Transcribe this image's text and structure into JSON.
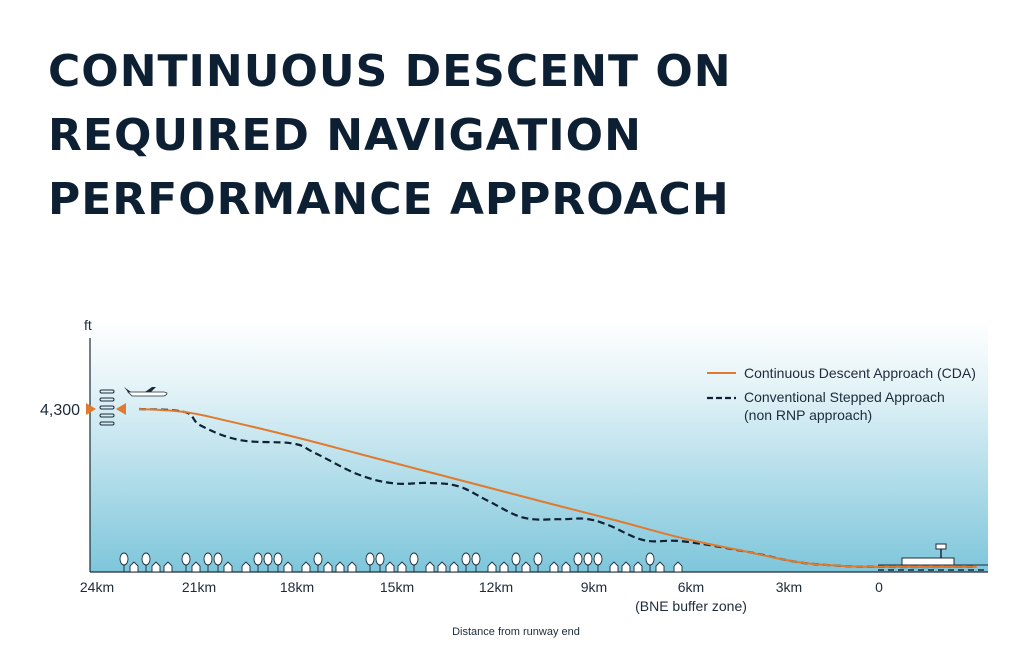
{
  "title_lines": [
    "CONTINUOUS DESCENT ON",
    "REQUIRED NAVIGATION",
    "PERFORMANCE APPROACH"
  ],
  "chart_data": {
    "type": "line",
    "title": "CONTINUOUS DESCENT ON REQUIRED NAVIGATION PERFORMANCE APPROACH",
    "ylabel": "ft",
    "xlabel": "Distance from runway end",
    "x_tick_labels": [
      "24km",
      "21km",
      "18km",
      "15km",
      "12km",
      "9km",
      "6km",
      "3km",
      "0"
    ],
    "x_tick_sublabel": "(BNE buffer zone)",
    "y_tick_labels": [
      "4,300"
    ],
    "x_reversed": true,
    "xlim": [
      24,
      0
    ],
    "ylim": [
      0,
      4300
    ],
    "grid": false,
    "legend_position": "top-right",
    "legend": [
      {
        "name": "Continuous Descent Approach (CDA)",
        "style": "solid",
        "color": "#e07a2e"
      },
      {
        "name": "Conventional Stepped Approach",
        "subname": "(non RNP approach)",
        "style": "dashed",
        "color": "#0f2233"
      }
    ],
    "series": [
      {
        "name": "Continuous Descent Approach (CDA)",
        "color": "#e07a2e",
        "x": [
          22.7,
          21.3,
          20.0,
          18.0,
          16.0,
          14.0,
          12.0,
          10.0,
          8.0,
          6.0,
          4.0,
          2.5,
          1.2,
          0.0,
          -3.0
        ],
        "y": [
          4300,
          4220,
          3980,
          3560,
          3100,
          2640,
          2180,
          1720,
          1270,
          800,
          430,
          160,
          60,
          30,
          30
        ]
      },
      {
        "name": "Conventional Stepped Approach",
        "color": "#0f2233",
        "x": [
          22.7,
          21.3,
          20.8,
          19.6,
          18.0,
          17.3,
          16.0,
          14.9,
          13.8,
          12.9,
          12.0,
          10.9,
          9.8,
          9.0,
          8.3,
          7.2,
          6.0,
          4.0,
          2.5,
          1.2,
          0.0,
          -3.0
        ],
        "y": [
          4300,
          4220,
          3850,
          3460,
          3370,
          3110,
          2540,
          2290,
          2300,
          2210,
          1820,
          1360,
          1320,
          1330,
          1160,
          750,
          720,
          430,
          160,
          60,
          30,
          30
        ]
      }
    ],
    "colors": {
      "cda": "#e07a2e",
      "conventional": "#0f2233",
      "sky_top": "#ffffff",
      "sky_bottom": "#7ec6db"
    }
  }
}
